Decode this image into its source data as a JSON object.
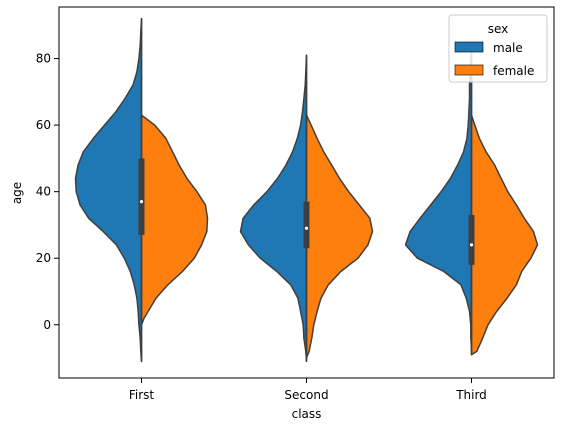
{
  "chart_data": {
    "type": "violin",
    "split": true,
    "xlabel": "class",
    "ylabel": "age",
    "categories": [
      "First",
      "Second",
      "Third"
    ],
    "yticks": [
      0,
      20,
      40,
      60,
      80
    ],
    "ylim": [
      -16,
      95.5
    ],
    "grid": false,
    "legend": {
      "title": "sex",
      "placement": "top-right",
      "entries": [
        {
          "label": "male",
          "color": "#1f77b4"
        },
        {
          "label": "female",
          "color": "#ff7f0e"
        }
      ]
    },
    "violins": [
      {
        "category": "First",
        "box": {
          "q1": 27,
          "median": 37,
          "q3": 50
        },
        "male": {
          "range": [
            -11,
            92
          ],
          "profile": [
            [
              -11,
              0.0
            ],
            [
              -8,
              0.01
            ],
            [
              -4,
              0.02
            ],
            [
              0,
              0.04
            ],
            [
              4,
              0.05
            ],
            [
              8,
              0.07
            ],
            [
              12,
              0.11
            ],
            [
              16,
              0.17
            ],
            [
              20,
              0.26
            ],
            [
              24,
              0.38
            ],
            [
              28,
              0.58
            ],
            [
              32,
              0.8
            ],
            [
              36,
              0.93
            ],
            [
              40,
              0.99
            ],
            [
              44,
              1.0
            ],
            [
              48,
              0.96
            ],
            [
              52,
              0.88
            ],
            [
              56,
              0.73
            ],
            [
              60,
              0.56
            ],
            [
              64,
              0.39
            ],
            [
              68,
              0.25
            ],
            [
              72,
              0.13
            ],
            [
              76,
              0.07
            ],
            [
              80,
              0.04
            ],
            [
              84,
              0.02
            ],
            [
              88,
              0.01
            ],
            [
              92,
              0.0
            ]
          ]
        },
        "female": {
          "range": [
            0,
            63
          ],
          "profile": [
            [
              0,
              0.0
            ],
            [
              2,
              0.04
            ],
            [
              4,
              0.1
            ],
            [
              8,
              0.22
            ],
            [
              12,
              0.4
            ],
            [
              16,
              0.62
            ],
            [
              20,
              0.8
            ],
            [
              24,
              0.91
            ],
            [
              28,
              0.99
            ],
            [
              32,
              1.0
            ],
            [
              36,
              0.97
            ],
            [
              40,
              0.84
            ],
            [
              44,
              0.69
            ],
            [
              48,
              0.57
            ],
            [
              52,
              0.47
            ],
            [
              56,
              0.37
            ],
            [
              60,
              0.2
            ],
            [
              63,
              0.0
            ]
          ]
        }
      },
      {
        "category": "Second",
        "box": {
          "q1": 23,
          "median": 29,
          "q3": 37
        },
        "male": {
          "range": [
            -11,
            81
          ],
          "profile": [
            [
              -11,
              0.0
            ],
            [
              -8,
              0.01
            ],
            [
              -4,
              0.04
            ],
            [
              0,
              0.05
            ],
            [
              4,
              0.09
            ],
            [
              8,
              0.13
            ],
            [
              12,
              0.24
            ],
            [
              16,
              0.45
            ],
            [
              20,
              0.7
            ],
            [
              24,
              0.88
            ],
            [
              28,
              1.0
            ],
            [
              32,
              0.96
            ],
            [
              36,
              0.8
            ],
            [
              40,
              0.6
            ],
            [
              44,
              0.44
            ],
            [
              48,
              0.31
            ],
            [
              52,
              0.21
            ],
            [
              56,
              0.14
            ],
            [
              60,
              0.09
            ],
            [
              64,
              0.06
            ],
            [
              68,
              0.04
            ],
            [
              72,
              0.02
            ],
            [
              76,
              0.01
            ],
            [
              81,
              0.0
            ]
          ]
        },
        "female": {
          "range": [
            -10,
            63
          ],
          "profile": [
            [
              -10,
              0.0
            ],
            [
              -8,
              0.04
            ],
            [
              -4,
              0.08
            ],
            [
              0,
              0.11
            ],
            [
              4,
              0.16
            ],
            [
              8,
              0.22
            ],
            [
              12,
              0.33
            ],
            [
              16,
              0.52
            ],
            [
              20,
              0.78
            ],
            [
              24,
              0.93
            ],
            [
              28,
              1.0
            ],
            [
              32,
              0.96
            ],
            [
              36,
              0.8
            ],
            [
              40,
              0.64
            ],
            [
              44,
              0.5
            ],
            [
              48,
              0.38
            ],
            [
              52,
              0.26
            ],
            [
              56,
              0.16
            ],
            [
              60,
              0.07
            ],
            [
              63,
              0.0
            ]
          ]
        }
      },
      {
        "category": "Third",
        "box": {
          "q1": 18,
          "median": 24,
          "q3": 33
        },
        "male": {
          "range": [
            -7,
            82
          ],
          "profile": [
            [
              -7,
              0.0
            ],
            [
              -4,
              0.01
            ],
            [
              0,
              0.01
            ],
            [
              4,
              0.03
            ],
            [
              8,
              0.08
            ],
            [
              12,
              0.16
            ],
            [
              16,
              0.42
            ],
            [
              20,
              0.82
            ],
            [
              24,
              1.0
            ],
            [
              28,
              0.93
            ],
            [
              32,
              0.78
            ],
            [
              36,
              0.62
            ],
            [
              40,
              0.46
            ],
            [
              44,
              0.32
            ],
            [
              48,
              0.21
            ],
            [
              52,
              0.12
            ],
            [
              56,
              0.07
            ],
            [
              60,
              0.05
            ],
            [
              64,
              0.04
            ],
            [
              68,
              0.03
            ],
            [
              72,
              0.03
            ],
            [
              76,
              0.02
            ],
            [
              80,
              0.01
            ],
            [
              82,
              0.0
            ]
          ]
        },
        "female": {
          "range": [
            -9,
            63
          ],
          "profile": [
            [
              -9,
              0.0
            ],
            [
              -8,
              0.08
            ],
            [
              -4,
              0.17
            ],
            [
              0,
              0.25
            ],
            [
              4,
              0.38
            ],
            [
              8,
              0.54
            ],
            [
              12,
              0.68
            ],
            [
              16,
              0.76
            ],
            [
              20,
              0.9
            ],
            [
              24,
              1.0
            ],
            [
              28,
              0.94
            ],
            [
              32,
              0.8
            ],
            [
              36,
              0.68
            ],
            [
              40,
              0.55
            ],
            [
              44,
              0.45
            ],
            [
              48,
              0.35
            ],
            [
              52,
              0.22
            ],
            [
              56,
              0.12
            ],
            [
              60,
              0.05
            ],
            [
              63,
              0.0
            ]
          ]
        }
      }
    ]
  }
}
